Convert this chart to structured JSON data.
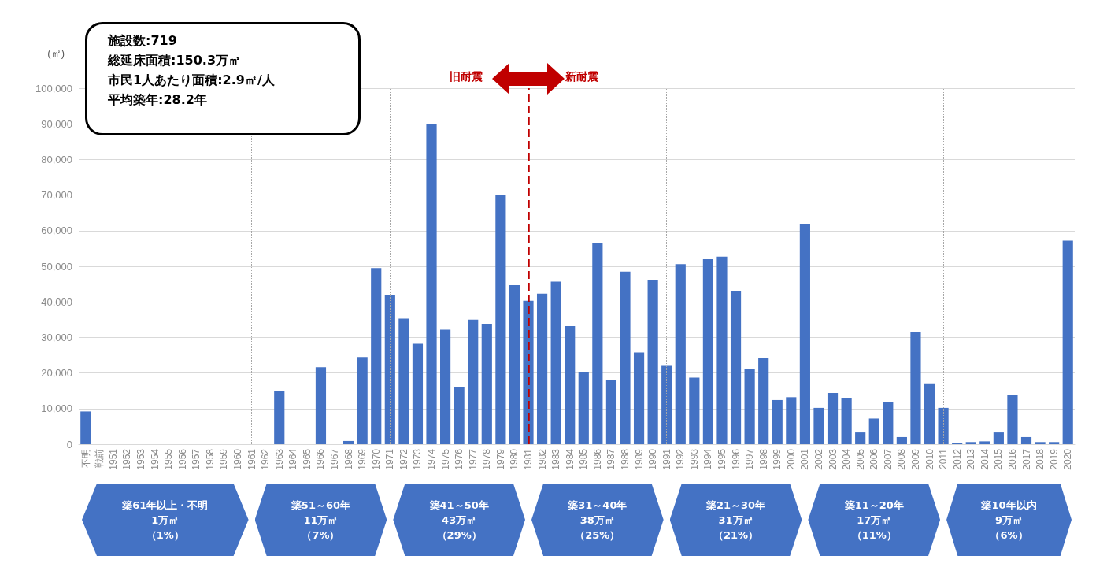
{
  "chart_data": {
    "type": "bar",
    "ylabel": "(㎡)",
    "categories": [
      "不明",
      "戦前",
      "1951",
      "1952",
      "1953",
      "1954",
      "1955",
      "1956",
      "1957",
      "1958",
      "1959",
      "1960",
      "1961",
      "1962",
      "1963",
      "1964",
      "1965",
      "1966",
      "1967",
      "1968",
      "1969",
      "1970",
      "1971",
      "1972",
      "1973",
      "1974",
      "1975",
      "1976",
      "1977",
      "1978",
      "1979",
      "1980",
      "1981",
      "1982",
      "1983",
      "1984",
      "1985",
      "1986",
      "1987",
      "1988",
      "1989",
      "1990",
      "1991",
      "1992",
      "1993",
      "1994",
      "1995",
      "1996",
      "1997",
      "1998",
      "1999",
      "2000",
      "2001",
      "2002",
      "2003",
      "2004",
      "2005",
      "2006",
      "2007",
      "2008",
      "2009",
      "2010",
      "2011",
      "2012",
      "2013",
      "2014",
      "2015",
      "2016",
      "2017",
      "2018",
      "2019",
      "2020"
    ],
    "values": [
      9200,
      0,
      0,
      0,
      0,
      0,
      0,
      0,
      0,
      0,
      0,
      0,
      0,
      0,
      15000,
      0,
      0,
      21600,
      0,
      900,
      24500,
      49500,
      41800,
      35300,
      28200,
      90000,
      32200,
      16000,
      35000,
      33800,
      70000,
      44700,
      40300,
      42300,
      45700,
      33200,
      20300,
      56500,
      17900,
      48500,
      25800,
      46200,
      22000,
      50600,
      18700,
      52000,
      52700,
      43100,
      21200,
      24100,
      12400,
      13200,
      61900,
      10200,
      14400,
      13000,
      3300,
      7200,
      11900,
      2000,
      31600,
      17100,
      10200,
      400,
      600,
      800,
      3300,
      13800,
      2000,
      600,
      600,
      57200
    ],
    "color": "#4472c4",
    "ylim": [
      0,
      100000
    ],
    "yticks": [
      {
        "value": 0,
        "label": "0"
      },
      {
        "value": 10000,
        "label": "10,000"
      },
      {
        "value": 20000,
        "label": "20,000"
      },
      {
        "value": 30000,
        "label": "30,000"
      },
      {
        "value": 40000,
        "label": "40,000"
      },
      {
        "value": 50000,
        "label": "50,000"
      },
      {
        "value": 60000,
        "label": "60,000"
      },
      {
        "value": 70000,
        "label": "70,000"
      },
      {
        "value": 80000,
        "label": "80,000"
      },
      {
        "value": 90000,
        "label": "90,000"
      },
      {
        "value": 100000,
        "label": "100,000"
      }
    ],
    "grid": "y",
    "ref_lines": [
      {
        "axis": "x",
        "value": "1961",
        "color": "#a6a6a6",
        "line_style": "dotted"
      },
      {
        "axis": "x",
        "value": "1971",
        "color": "#a6a6a6",
        "line_style": "dotted"
      },
      {
        "axis": "x",
        "value": "1981",
        "color": "#c00000",
        "line_style": "dashed"
      },
      {
        "axis": "x",
        "value": "1991",
        "color": "#a6a6a6",
        "line_style": "dotted"
      },
      {
        "axis": "x",
        "value": "2001",
        "color": "#a6a6a6",
        "line_style": "dotted"
      },
      {
        "axis": "x",
        "value": "2011",
        "color": "#a6a6a6",
        "line_style": "dotted"
      }
    ],
    "annotations": [
      "施設数:719",
      "総延床面積:150.3万㎡",
      "市民1人あたり面積:2.9㎡/人",
      "平均築年:28.2年",
      "旧耐震",
      "新耐震",
      "築61年以上・不明",
      "1万㎡",
      "（1%）",
      "築51～60年",
      "11万㎡",
      "（7%）",
      "築41～50年",
      "43万㎡",
      "（29%）",
      "築31～40年",
      "38万㎡",
      "（25%）",
      "築21～30年",
      "31万㎡",
      "（21%）",
      "築11～20年",
      "17万㎡",
      "（11%）",
      "築10年以内",
      "9万㎡",
      "（6%）"
    ]
  }
}
